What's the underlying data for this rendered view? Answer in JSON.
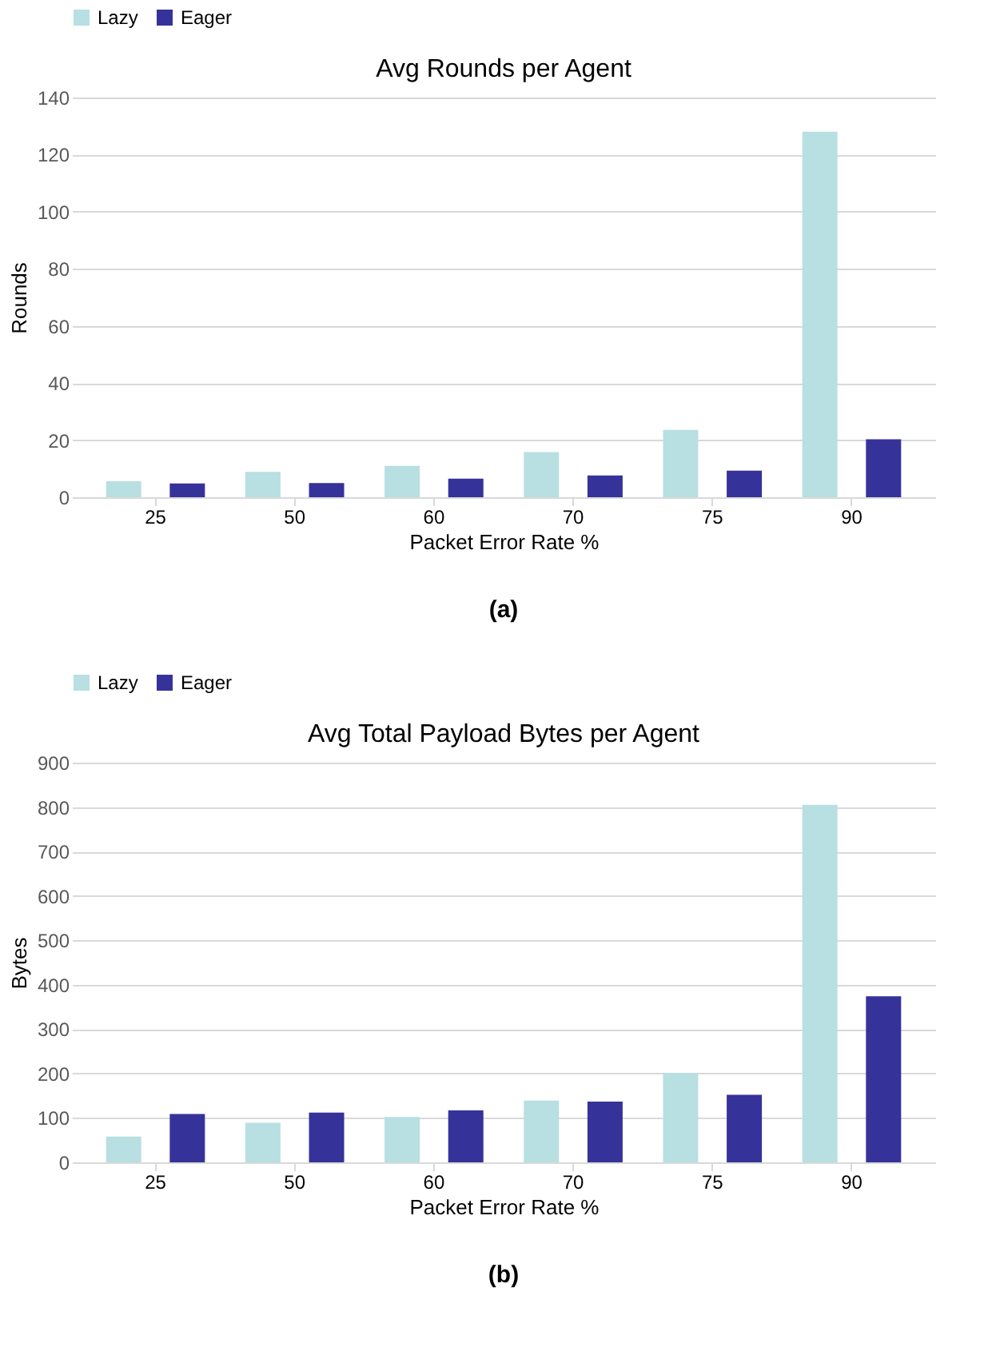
{
  "chart_data": [
    {
      "type": "bar",
      "title": "Avg Rounds per Agent",
      "xlabel": "Packet Error Rate %",
      "ylabel": "Rounds",
      "categories": [
        "25",
        "50",
        "60",
        "70",
        "75",
        "90"
      ],
      "series": [
        {
          "name": "Lazy",
          "color": "#b8dfe1",
          "values": [
            5.6,
            8.9,
            11,
            15.8,
            23.6,
            128
          ]
        },
        {
          "name": "Eager",
          "color": "#353399",
          "values": [
            4.8,
            5,
            6.5,
            7.6,
            9.3,
            20.3
          ]
        }
      ],
      "ylim": [
        0,
        140
      ],
      "yticks": [
        0,
        20,
        40,
        60,
        80,
        100,
        120,
        140
      ],
      "grid": "y",
      "legend": "top",
      "annotations": [
        "(a)"
      ]
    },
    {
      "type": "bar",
      "title": "Avg Total Payload Bytes per Agent",
      "xlabel": "Packet Error Rate %",
      "ylabel": "Bytes",
      "categories": [
        "25",
        "50",
        "60",
        "70",
        "75",
        "90"
      ],
      "series": [
        {
          "name": "Lazy",
          "color": "#b8dfe1",
          "values": [
            58,
            89,
            102,
            139,
            201,
            805
          ]
        },
        {
          "name": "Eager",
          "color": "#353399",
          "values": [
            109,
            112,
            117,
            137,
            152,
            374
          ]
        }
      ],
      "ylim": [
        0,
        900
      ],
      "yticks": [
        0,
        100,
        200,
        300,
        400,
        500,
        600,
        700,
        800,
        900
      ],
      "grid": "y",
      "legend": "top",
      "annotations": [
        "(b)"
      ]
    }
  ]
}
